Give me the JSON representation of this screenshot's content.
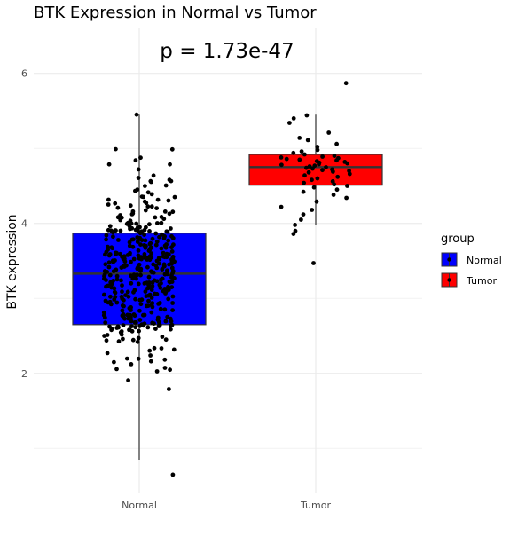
{
  "chart_data": {
    "type": "boxplot",
    "title": "BTK Expression in Normal vs Tumor",
    "annotation": "p = 1.73e-47",
    "xlabel": "",
    "ylabel": "BTK expression",
    "ylim": [
      0.4,
      6.6
    ],
    "y_ticks": [
      2,
      4,
      6
    ],
    "y_minor_ticks": [
      1,
      3,
      5
    ],
    "grid": true,
    "legend": {
      "title": "group",
      "position": "right",
      "entries": [
        "Normal",
        "Tumor"
      ]
    },
    "categories": [
      "Normal",
      "Tumor"
    ],
    "colors": {
      "Normal": "#0000ff",
      "Tumor": "#ff0000"
    },
    "boxes": [
      {
        "name": "Normal",
        "whisker_low": 0.85,
        "q1": 2.65,
        "median": 3.33,
        "q3": 3.87,
        "whisker_high": 5.45
      },
      {
        "name": "Tumor",
        "whisker_low": 3.98,
        "q1": 4.51,
        "median": 4.75,
        "q3": 4.92,
        "whisker_high": 5.45
      }
    ],
    "points": {
      "Normal": {
        "n": 420,
        "min": 0.65,
        "max": 5.45
      },
      "Tumor": [
        5.87,
        5.44,
        5.4,
        5.34,
        5.21,
        5.14,
        5.11,
        5.06,
        5.02,
        4.98,
        4.96,
        4.94,
        4.92,
        4.9,
        4.89,
        4.88,
        4.87,
        4.86,
        4.85,
        4.84,
        4.83,
        4.82,
        4.81,
        4.8,
        4.79,
        4.78,
        4.77,
        4.76,
        4.75,
        4.74,
        4.73,
        4.72,
        4.71,
        4.7,
        4.69,
        4.68,
        4.66,
        4.64,
        4.62,
        4.6,
        4.58,
        4.56,
        4.54,
        4.52,
        4.5,
        4.48,
        4.45,
        4.42,
        4.38,
        4.34,
        4.29,
        4.22,
        4.18,
        4.12,
        4.05,
        3.98,
        3.9,
        3.86,
        3.47
      ]
    }
  }
}
